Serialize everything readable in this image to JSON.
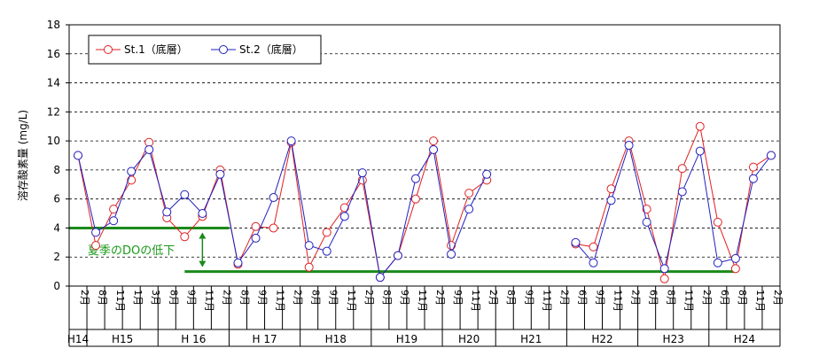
{
  "chart_data": {
    "type": "line",
    "ylabel": "溶存酸素量 (mg/L)",
    "ylim": [
      0,
      18
    ],
    "yticks": [
      0,
      2,
      4,
      6,
      8,
      10,
      12,
      14,
      16,
      18
    ],
    "grid": true,
    "legend_position": "top-left",
    "categories": [
      "2月",
      "8月",
      "11月",
      "1月",
      "3月",
      "8月",
      "9月",
      "11月",
      "2月",
      "8月",
      "9月",
      "11月",
      "2月",
      "8月",
      "9月",
      "11月",
      "2月",
      "8月",
      "9月",
      "11月",
      "2月",
      "9月",
      "11月",
      "2月",
      "8月",
      "9月",
      "11月",
      "2月",
      "6月",
      "9月",
      "11月",
      "2月",
      "6月",
      "8月",
      "11月",
      "2月",
      "6月",
      "8月",
      "11月",
      "2月"
    ],
    "groups": [
      {
        "label": "H14",
        "start": 0,
        "end": 0
      },
      {
        "label": "H15",
        "start": 1,
        "end": 4
      },
      {
        "label": "H 16",
        "start": 5,
        "end": 8
      },
      {
        "label": "H 17",
        "start": 9,
        "end": 12
      },
      {
        "label": "H18",
        "start": 13,
        "end": 16
      },
      {
        "label": "H19",
        "start": 17,
        "end": 20
      },
      {
        "label": "H20",
        "start": 21,
        "end": 23
      },
      {
        "label": "H21",
        "start": 24,
        "end": 27
      },
      {
        "label": "H22",
        "start": 28,
        "end": 31
      },
      {
        "label": "H23",
        "start": 32,
        "end": 35
      },
      {
        "label": "H24",
        "start": 36,
        "end": 39
      }
    ],
    "series": [
      {
        "name": "St.1（底層）",
        "color": "#e02020",
        "values": [
          9.0,
          2.8,
          5.3,
          7.3,
          9.9,
          4.7,
          3.4,
          4.8,
          8.0,
          1.5,
          4.1,
          4.0,
          9.9,
          1.3,
          3.7,
          5.4,
          7.3,
          0.6,
          2.1,
          6.0,
          10.0,
          2.8,
          6.4,
          7.3,
          null,
          null,
          null,
          null,
          2.9,
          2.7,
          6.7,
          10.0,
          5.3,
          0.5,
          8.1,
          11.0,
          4.4,
          1.2,
          8.2,
          9.0
        ]
      },
      {
        "name": "St.2（底層）",
        "color": "#2020c0",
        "values": [
          9.0,
          3.7,
          4.5,
          7.9,
          9.4,
          5.1,
          6.3,
          5.0,
          7.7,
          1.6,
          3.3,
          6.1,
          10.0,
          2.8,
          2.4,
          4.8,
          7.8,
          0.6,
          2.1,
          7.4,
          9.4,
          2.2,
          5.3,
          7.7,
          null,
          null,
          null,
          null,
          3.0,
          1.6,
          5.9,
          9.7,
          4.4,
          1.2,
          6.5,
          9.3,
          1.6,
          1.9,
          7.4,
          9.0
        ]
      }
    ],
    "annotation": {
      "text": "夏季のDOの低下",
      "upper_line_y": 4.0,
      "upper_line_from": 0,
      "upper_line_to": 8,
      "lower_line_y": 1.0,
      "lower_line_from": 6,
      "lower_line_to": 37,
      "color": "#1a8a1a",
      "text_color": "#1a9a1a"
    }
  }
}
